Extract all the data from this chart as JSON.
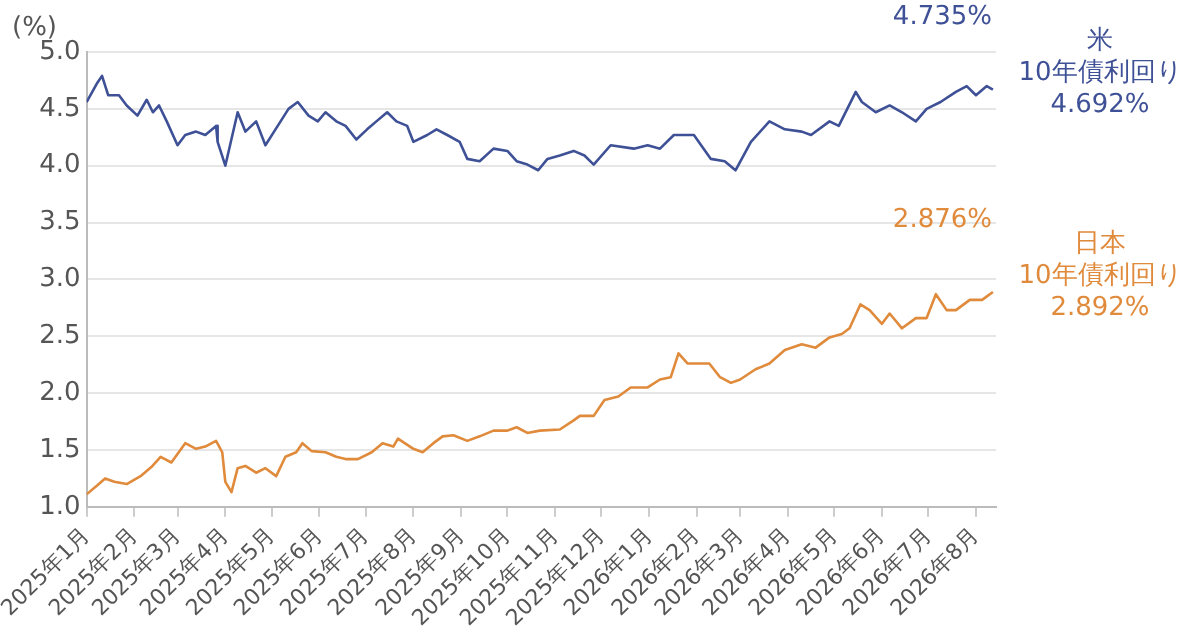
{
  "chart_data": {
    "type": "line",
    "ylabel": "(%)",
    "xlim": [
      "2025-01-01",
      "2026-08-14"
    ],
    "ylim": [
      1,
      5
    ],
    "yticks": [
      {
        "value": 1,
        "label": "1.0"
      },
      {
        "value": 1.5,
        "label": "1.5"
      },
      {
        "value": 2,
        "label": "2.0"
      },
      {
        "value": 2.5,
        "label": "2.5"
      },
      {
        "value": 3,
        "label": "3.0"
      },
      {
        "value": 3.5,
        "label": "3.5"
      },
      {
        "value": 4,
        "label": "4.0"
      },
      {
        "value": 4.5,
        "label": "4.5"
      },
      {
        "value": 5,
        "label": "5.0"
      }
    ],
    "xticks": [
      {
        "value": "2025-01",
        "label": "2025年1月"
      },
      {
        "value": "2025-02",
        "label": "2025年2月"
      },
      {
        "value": "2025-03",
        "label": "2025年3月"
      },
      {
        "value": "2025-04",
        "label": "2025年4月"
      },
      {
        "value": "2025-05",
        "label": "2025年5月"
      },
      {
        "value": "2025-06",
        "label": "2025年6月"
      },
      {
        "value": "2025-07",
        "label": "2025年7月"
      },
      {
        "value": "2025-08",
        "label": "2025年8月"
      },
      {
        "value": "2025-09",
        "label": "2025年9月"
      },
      {
        "value": "2025-10",
        "label": "2025年10月"
      },
      {
        "value": "2025-11",
        "label": "2025年11月"
      },
      {
        "value": "2025-12",
        "label": "2025年12月"
      },
      {
        "value": "2026-01",
        "label": "2026年1月"
      },
      {
        "value": "2026-02",
        "label": "2026年2月"
      },
      {
        "value": "2026-03",
        "label": "2026年3月"
      },
      {
        "value": "2026-04",
        "label": "2026年4月"
      },
      {
        "value": "2026-05",
        "label": "2026年5月"
      },
      {
        "value": "2026-06",
        "label": "2026年6月"
      },
      {
        "value": "2026-07",
        "label": "2026年7月"
      },
      {
        "value": "2026-08",
        "label": "2026年8月"
      }
    ],
    "grid": "y",
    "legend": false,
    "marker": "none",
    "line_style": "solid",
    "annotations": [
      "4.735%",
      "4.692%",
      "2.876%",
      "2.892%"
    ],
    "series": [
      {
        "name": "米 10年債利回り",
        "color": "#3f5196",
        "x": [
          "2025-01-01",
          "2025-01-08",
          "2025-01-11",
          "2025-01-15",
          "2025-01-22",
          "2025-01-27",
          "2025-02-03",
          "2025-02-09",
          "2025-02-13",
          "2025-02-17",
          "2025-02-22",
          "2025-03-01",
          "2025-03-06",
          "2025-03-13",
          "2025-03-19",
          "2025-03-26",
          "2025-03-27",
          "2025-04-01",
          "2025-04-09",
          "2025-04-14",
          "2025-04-21",
          "2025-04-27",
          "2025-05-05",
          "2025-05-12",
          "2025-05-18",
          "2025-05-25",
          "2025-05-31",
          "2025-06-05",
          "2025-06-12",
          "2025-06-18",
          "2025-06-25",
          "2025-07-02",
          "2025-07-08",
          "2025-07-15",
          "2025-07-21",
          "2025-07-28",
          "2025-08-01",
          "2025-08-10",
          "2025-08-16",
          "2025-08-23",
          "2025-08-31",
          "2025-09-05",
          "2025-09-13",
          "2025-09-22",
          "2025-10-01",
          "2025-10-07",
          "2025-10-14",
          "2025-10-21",
          "2025-10-27",
          "2025-11-04",
          "2025-11-13",
          "2025-11-20",
          "2025-11-26",
          "2025-12-07",
          "2025-12-22",
          "2025-12-31",
          "2026-01-08",
          "2026-01-17",
          "2026-01-30",
          "2026-02-10",
          "2026-02-19",
          "2026-02-26",
          "2026-03-08",
          "2026-03-20",
          "2026-03-30",
          "2026-04-10",
          "2026-04-16",
          "2026-04-28",
          "2026-05-04",
          "2026-05-15",
          "2026-05-19",
          "2026-05-28",
          "2026-06-06",
          "2026-06-14",
          "2026-06-23",
          "2026-06-30",
          "2026-07-09",
          "2026-07-19",
          "2026-07-26",
          "2026-08-01",
          "2026-08-08",
          "2026-08-12"
        ],
        "values": [
          4.56,
          4.73,
          4.79,
          4.62,
          4.62,
          4.53,
          4.44,
          4.58,
          4.47,
          4.53,
          4.39,
          4.18,
          4.27,
          4.3,
          4.27,
          4.35,
          4.21,
          4.0,
          4.47,
          4.3,
          4.39,
          4.18,
          4.35,
          4.5,
          4.56,
          4.44,
          4.39,
          4.47,
          4.39,
          4.35,
          4.23,
          4.32,
          4.39,
          4.47,
          4.39,
          4.35,
          4.21,
          4.27,
          4.32,
          4.27,
          4.21,
          4.06,
          4.04,
          4.15,
          4.13,
          4.04,
          4.01,
          3.96,
          4.06,
          4.09,
          4.13,
          4.09,
          4.01,
          4.18,
          4.15,
          4.18,
          4.15,
          4.27,
          4.27,
          4.06,
          4.04,
          3.96,
          4.21,
          4.39,
          4.32,
          4.3,
          4.27,
          4.39,
          4.35,
          4.65,
          4.56,
          4.47,
          4.53,
          4.47,
          4.39,
          4.5,
          4.56,
          4.65,
          4.7,
          4.62,
          4.7,
          4.67
        ]
      },
      {
        "name": "日本 10年債利回り",
        "color": "#e08a3c",
        "x": [
          "2025-01-01",
          "2025-01-08",
          "2025-01-13",
          "2025-01-19",
          "2025-01-27",
          "2025-02-05",
          "2025-02-12",
          "2025-02-18",
          "2025-02-25",
          "2025-03-06",
          "2025-03-13",
          "2025-03-19",
          "2025-03-26",
          "2025-03-30",
          "2025-04-01",
          "2025-04-05",
          "2025-04-09",
          "2025-04-14",
          "2025-04-21",
          "2025-04-27",
          "2025-05-04",
          "2025-05-10",
          "2025-05-17",
          "2025-05-21",
          "2025-05-27",
          "2025-06-05",
          "2025-06-12",
          "2025-06-18",
          "2025-06-26",
          "2025-07-05",
          "2025-07-12",
          "2025-07-19",
          "2025-07-22",
          "2025-08-01",
          "2025-08-07",
          "2025-08-14",
          "2025-08-20",
          "2025-08-27",
          "2025-09-05",
          "2025-09-13",
          "2025-09-22",
          "2025-10-01",
          "2025-10-07",
          "2025-10-14",
          "2025-10-22",
          "2025-11-04",
          "2025-11-13",
          "2025-11-17",
          "2025-11-26",
          "2025-12-03",
          "2025-12-12",
          "2025-12-20",
          "2025-12-31",
          "2026-01-08",
          "2026-01-15",
          "2026-01-20",
          "2026-01-26",
          "2026-02-09",
          "2026-02-16",
          "2026-02-23",
          "2026-03-01",
          "2026-03-11",
          "2026-03-20",
          "2026-03-30",
          "2026-04-10",
          "2026-04-19",
          "2026-04-28",
          "2026-05-06",
          "2026-05-11",
          "2026-05-18",
          "2026-05-24",
          "2026-06-01",
          "2026-06-06",
          "2026-06-14",
          "2026-06-23",
          "2026-06-30",
          "2026-07-06",
          "2026-07-13",
          "2026-07-19",
          "2026-07-28",
          "2026-08-05",
          "2026-08-12"
        ],
        "values": [
          1.11,
          1.19,
          1.25,
          1.22,
          1.2,
          1.27,
          1.35,
          1.44,
          1.39,
          1.56,
          1.51,
          1.53,
          1.58,
          1.48,
          1.22,
          1.13,
          1.34,
          1.36,
          1.3,
          1.34,
          1.27,
          1.44,
          1.48,
          1.56,
          1.49,
          1.48,
          1.44,
          1.42,
          1.42,
          1.48,
          1.56,
          1.53,
          1.6,
          1.51,
          1.48,
          1.56,
          1.62,
          1.63,
          1.58,
          1.62,
          1.67,
          1.67,
          1.7,
          1.65,
          1.67,
          1.68,
          1.76,
          1.8,
          1.8,
          1.94,
          1.97,
          2.05,
          2.05,
          2.12,
          2.14,
          2.35,
          2.26,
          2.26,
          2.14,
          2.09,
          2.12,
          2.21,
          2.26,
          2.38,
          2.43,
          2.4,
          2.49,
          2.52,
          2.57,
          2.78,
          2.73,
          2.61,
          2.7,
          2.57,
          2.66,
          2.66,
          2.87,
          2.73,
          2.73,
          2.82,
          2.82,
          2.89
        ]
      }
    ]
  }
}
